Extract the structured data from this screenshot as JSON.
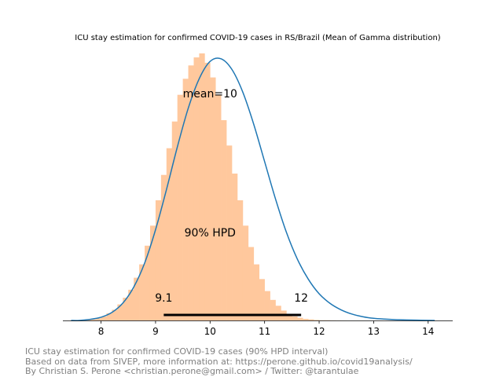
{
  "chart_data": {
    "type": "histogram",
    "title": "ICU stay estimation for confirmed COVID-19 cases in RS/Brazil (Mean of Gamma distribution)",
    "xlabel": "",
    "ylabel": "",
    "xlim": [
      7.3,
      14.45
    ],
    "x_ticks": [
      "8",
      "9",
      "10",
      "11",
      "12",
      "13",
      "14"
    ],
    "y_axis_visible": false,
    "grid": false,
    "series": [
      {
        "kind": "histogram",
        "color": "#ffc89d",
        "bin_edges": [
          7.7,
          7.8,
          7.9,
          8.0,
          8.1,
          8.2,
          8.3,
          8.4,
          8.5,
          8.6,
          8.7,
          8.8,
          8.9,
          9.0,
          9.1,
          9.2,
          9.3,
          9.4,
          9.5,
          9.6,
          9.7,
          9.8,
          9.9,
          10.0,
          10.1,
          10.2,
          10.3,
          10.4,
          10.5,
          10.6,
          10.7,
          10.8,
          10.9,
          11.0,
          11.1,
          11.2,
          11.3,
          11.4,
          11.5,
          11.6,
          11.7,
          11.8,
          11.9,
          12.0,
          12.1,
          12.2,
          12.3,
          12.4,
          12.5,
          12.6,
          12.7,
          12.8,
          12.9,
          13.0,
          13.1
        ],
        "counts": [
          0.002,
          0.004,
          0.008,
          0.015,
          0.027,
          0.04,
          0.06,
          0.085,
          0.115,
          0.16,
          0.21,
          0.28,
          0.355,
          0.45,
          0.545,
          0.645,
          0.745,
          0.845,
          0.905,
          0.955,
          0.985,
          1.0,
          0.965,
          0.91,
          0.845,
          0.75,
          0.655,
          0.55,
          0.45,
          0.355,
          0.275,
          0.21,
          0.155,
          0.11,
          0.077,
          0.055,
          0.037,
          0.024,
          0.015,
          0.01,
          0.006,
          0.004,
          0.002,
          0.001,
          0.001,
          0.0005,
          0.0003,
          0.0002,
          0.0001,
          0.0001,
          0.0001,
          0.0,
          0.0,
          0.0
        ]
      },
      {
        "kind": "kde",
        "color": "#1f77b4",
        "x": [
          7.45,
          7.6,
          7.8,
          8.0,
          8.2,
          8.4,
          8.6,
          8.8,
          9.0,
          9.2,
          9.4,
          9.6,
          9.8,
          10.0,
          10.2,
          10.4,
          10.6,
          10.8,
          11.0,
          11.2,
          11.4,
          11.6,
          11.8,
          12.0,
          12.2,
          12.4,
          12.6,
          12.8,
          13.0,
          13.2,
          13.4,
          13.6,
          13.8,
          14.0,
          14.12
        ],
        "y": [
          0.0,
          0.0,
          0.004,
          0.012,
          0.03,
          0.065,
          0.125,
          0.215,
          0.34,
          0.49,
          0.65,
          0.795,
          0.905,
          0.97,
          0.98,
          0.94,
          0.855,
          0.735,
          0.595,
          0.455,
          0.33,
          0.23,
          0.155,
          0.1,
          0.064,
          0.04,
          0.024,
          0.014,
          0.008,
          0.005,
          0.003,
          0.002,
          0.001,
          0.0005,
          0.0
        ]
      }
    ],
    "annotations": {
      "mean_label": "mean=10",
      "hpd_label": "90% HPD",
      "hpd_low_label": "9.1",
      "hpd_high_label": "12",
      "hpd_interval": [
        9.15,
        11.67
      ],
      "mean_position": [
        10.0,
        0.85
      ],
      "hpd_text_position": [
        10.0,
        0.33
      ]
    },
    "footer": [
      "ICU stay estimation for confirmed COVID-19 cases (90% HPD interval)",
      "Based on data from SIVEP, more information at: https://perone.github.io/covid19analysis/",
      "By Christian S. Perone <christian.perone@gmail.com> / Twitter: @tarantulae"
    ]
  }
}
